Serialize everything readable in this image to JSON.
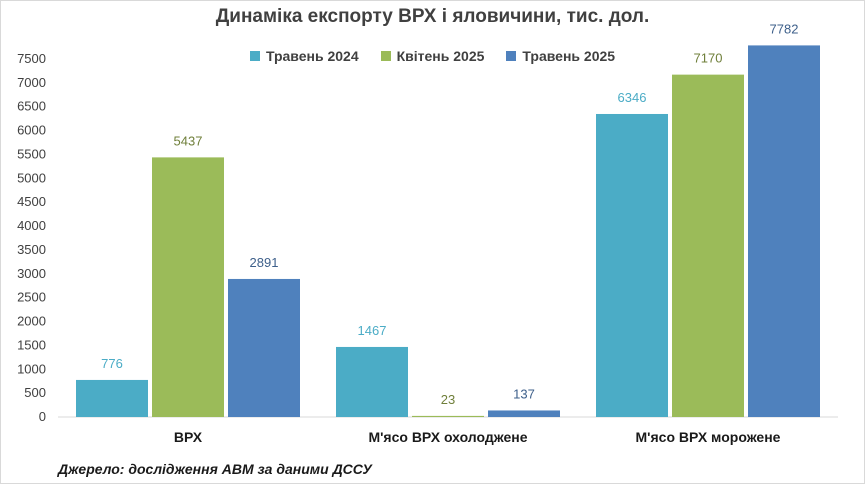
{
  "chart_data": {
    "type": "bar",
    "title": "Динаміка експорту ВРХ і яловичини, тис. дол.",
    "categories": [
      "ВРХ",
      "М'ясо ВРХ охолоджене",
      "М'ясо ВРХ морожене"
    ],
    "series": [
      {
        "name": "Травень 2024",
        "color": "#4bacc6",
        "label_color": "#4bacc6",
        "values": [
          776,
          1467,
          6346
        ]
      },
      {
        "name": "Квітень 2025",
        "color": "#9bbb59",
        "label_color": "#6f7f3a",
        "values": [
          5437,
          23,
          7170
        ]
      },
      {
        "name": "Травень 2025",
        "color": "#4f81bd",
        "label_color": "#3d5f8a",
        "values": [
          2891,
          137,
          7782
        ]
      }
    ],
    "yticks": [
      0,
      500,
      1000,
      1500,
      2000,
      2500,
      3000,
      3500,
      4000,
      4500,
      5000,
      5500,
      6000,
      6500,
      7000,
      7500
    ],
    "ylim": [
      0,
      8000
    ],
    "legend_position": "top",
    "grid": false
  },
  "source_note": "Джерело: дослідження АВМ за даними ДССУ"
}
